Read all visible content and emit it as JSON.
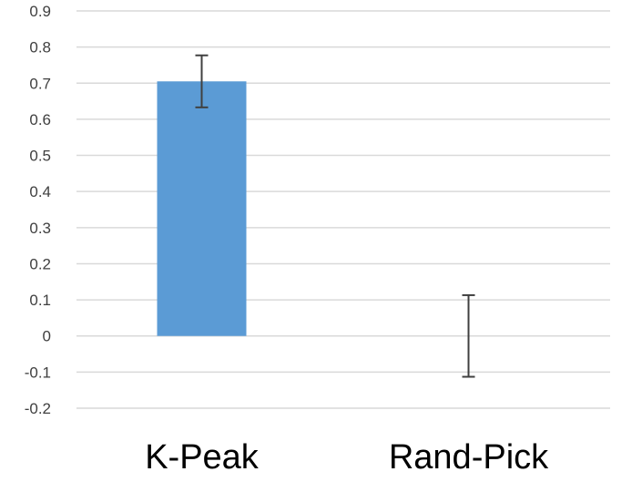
{
  "chart_data": {
    "type": "bar",
    "categories": [
      "K-Peak",
      "Rand-Pick"
    ],
    "values": [
      0.705,
      0.0
    ],
    "error": [
      0.072,
      0.113
    ],
    "ylim": [
      -0.2,
      0.9
    ],
    "yticks": [
      "0.9",
      "0.8",
      "0.7",
      "0.6",
      "0.5",
      "0.4",
      "0.3",
      "0.2",
      "0.1",
      "0",
      "-0.1",
      "-0.2"
    ],
    "grid": true,
    "legend": "none",
    "colors": {
      "bar": "#5b9bd5",
      "error_bar": "#404040",
      "grid": "#d9d9d9"
    }
  }
}
